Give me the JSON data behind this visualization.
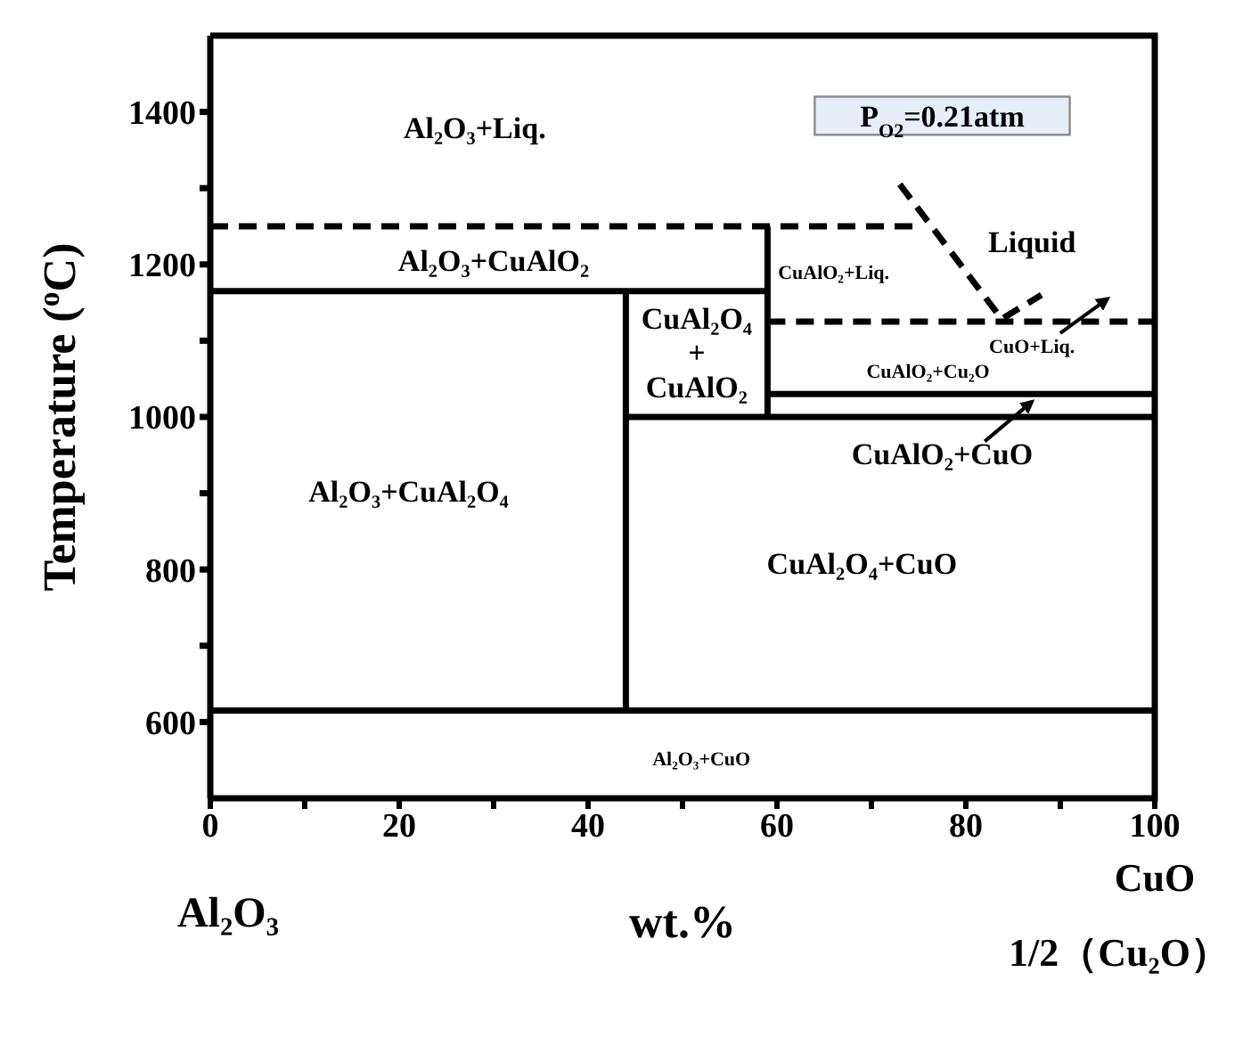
{
  "chart_data": {
    "type": "line",
    "xlabel": "wt.%",
    "ylabel": "Temperature ($^{o}$C)",
    "xlim": [
      0,
      100
    ],
    "ylim": [
      500,
      1500
    ],
    "xticks": [
      0,
      {
        "value": 10,
        "label": null
      },
      20,
      {
        "value": 30,
        "label": null
      },
      40,
      {
        "value": 50,
        "label": null
      },
      60,
      {
        "value": 70,
        "label": null
      },
      80,
      {
        "value": 90,
        "label": null
      },
      100
    ],
    "yticks": [
      600,
      {
        "value": 700,
        "label": null
      },
      800,
      {
        "value": 900,
        "label": null
      },
      1000,
      {
        "value": 1100,
        "label": null
      },
      1200,
      {
        "value": 1300,
        "label": null
      },
      1400
    ],
    "grid": false,
    "marker": "none",
    "series": [
      {
        "color": "#000000",
        "line_style": "solid",
        "x": [
          0,
          59
        ],
        "values": [
          1165,
          1165
        ]
      },
      {
        "color": "#000000",
        "line_style": "solid",
        "x": [
          59,
          59
        ],
        "values": [
          1250,
          1000
        ]
      },
      {
        "color": "#000000",
        "line_style": "solid",
        "x": [
          44,
          44
        ],
        "values": [
          1165,
          615
        ]
      },
      {
        "color": "#000000",
        "line_style": "solid",
        "x": [
          44,
          100
        ],
        "values": [
          1000,
          1000
        ]
      },
      {
        "color": "#000000",
        "line_style": "solid",
        "x": [
          59,
          100
        ],
        "values": [
          1030,
          1030
        ]
      },
      {
        "color": "#000000",
        "line_style": "solid",
        "x": [
          0,
          100
        ],
        "values": [
          615,
          615
        ]
      },
      {
        "color": "#000000",
        "line_style": "dashed",
        "x": [
          0,
          75
        ],
        "values": [
          1250,
          1250
        ]
      },
      {
        "color": "#000000",
        "line_style": "dashed",
        "x": [
          59,
          100
        ],
        "values": [
          1125,
          1125
        ]
      },
      {
        "color": "#000000",
        "line_style": "dashed",
        "x": [
          73,
          84
        ],
        "values": [
          1305,
          1125
        ]
      },
      {
        "color": "#000000",
        "line_style": "dashed",
        "x": [
          84,
          88
        ],
        "values": [
          1130,
          1160
        ]
      }
    ],
    "annotations": [
      "P$_{O2}$=0.21atm",
      "Al₂O₃",
      "CuO",
      "1/2（Cu₂O）",
      "Al₂O₃+Liq.",
      "Al₂O₃+CuAlO₂",
      "CuAlO₂+Liq.",
      "Liquid",
      "CuAl₂O₄",
      "+",
      "CuAlO₂",
      "CuO+Liq.",
      "CuAlO₂+Cu₂O",
      "CuAlO₂+CuO",
      "Al₂O₃+CuAl₂O₄",
      "CuAl₂O₄+CuO",
      "Al₂O₃+CuO"
    ]
  }
}
